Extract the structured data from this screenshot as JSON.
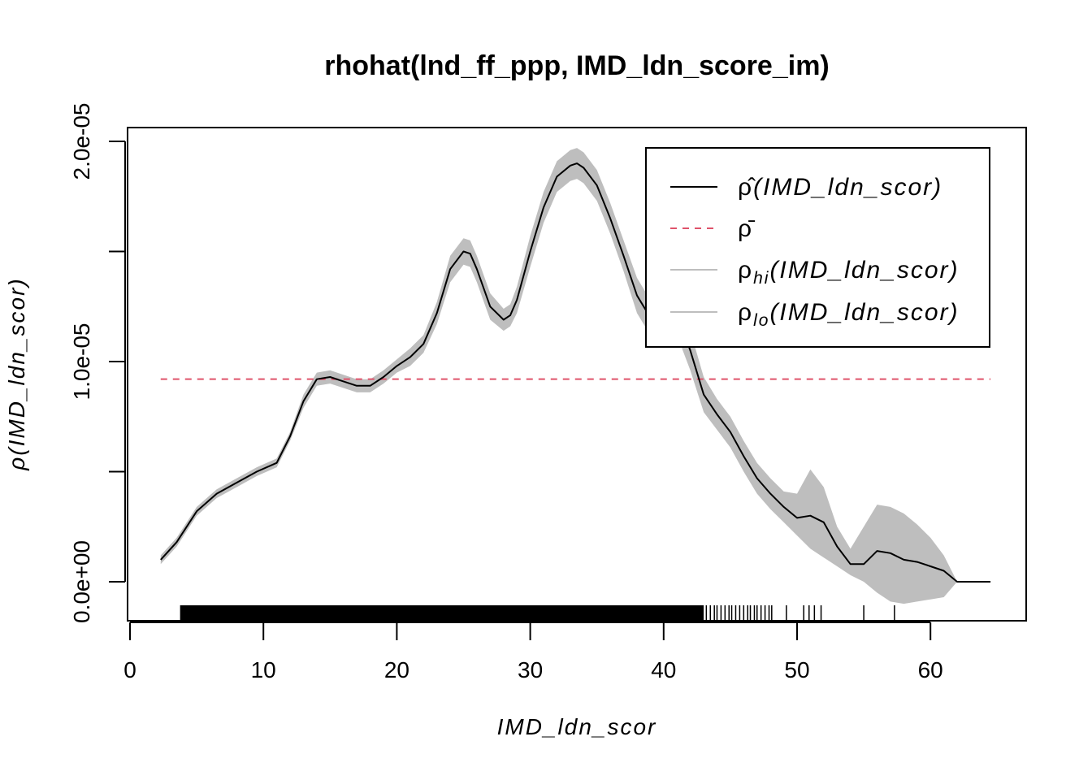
{
  "chart_data": {
    "type": "line",
    "title": "rhohat(lnd_ff_ppp, IMD_ldn_score_im)",
    "xlabel": "IMD_ldn_scor",
    "ylabel": "ρ(IMD_ldn_scor)",
    "xlim": [
      0,
      65
    ],
    "ylim": [
      -1.5e-06,
      2e-05
    ],
    "x_ticks": [
      0,
      10,
      20,
      30,
      40,
      50,
      60
    ],
    "x_tick_labels": [
      "0",
      "10",
      "20",
      "30",
      "40",
      "50",
      "60"
    ],
    "y_ticks": [
      0,
      5e-06,
      1e-05,
      1.5e-05,
      2e-05
    ],
    "y_tick_labels": [
      "0.0e+00",
      "",
      "1.0e-05",
      "",
      "2.0e-05"
    ],
    "grid": false,
    "legend_position": "top-right",
    "legend": [
      {
        "symbol": "ρ̂",
        "arg": "(IMD_ldn_scor)",
        "color": "#000000",
        "style": "solid"
      },
      {
        "symbol": "ρ̄",
        "arg": "",
        "color": "#DF536B",
        "style": "dashed"
      },
      {
        "symbol": "ρ",
        "sub": "hi",
        "arg": "(IMD_ldn_scor)",
        "color": "#BEBEBE",
        "style": "solid"
      },
      {
        "symbol": "ρ",
        "sub": "lo",
        "arg": "(IMD_ldn_scor)",
        "color": "#BEBEBE",
        "style": "solid"
      }
    ],
    "rho_bar": 9.2e-06,
    "series": [
      {
        "name": "ρ̂(IMD_ldn_scor)",
        "color": "#000000",
        "x": [
          2.3,
          3.5,
          5.0,
          6.5,
          8.0,
          9.5,
          11.0,
          12.0,
          13.0,
          14.0,
          15.0,
          16.0,
          17.0,
          18.0,
          19.0,
          20.0,
          21.0,
          22.0,
          23.0,
          24.0,
          25.0,
          25.5,
          26.0,
          27.0,
          28.0,
          28.5,
          29.0,
          30.0,
          31.0,
          32.0,
          33.0,
          33.5,
          34.0,
          35.0,
          36.0,
          37.0,
          38.0,
          39.0,
          40.0,
          40.5,
          41.0,
          42.0,
          43.0,
          44.0,
          45.0,
          46.0,
          47.0,
          48.0,
          49.0,
          50.0,
          51.0,
          52.0,
          53.0,
          54.0,
          55.0,
          56.0,
          57.0,
          58.0,
          59.0,
          60.0,
          61.0,
          62.0,
          63.0,
          64.5
        ],
        "values": [
          1e-06,
          1.8e-06,
          3.2e-06,
          4e-06,
          4.5e-06,
          5e-06,
          5.4e-06,
          6.6e-06,
          8.2e-06,
          9.2e-06,
          9.3e-06,
          9.1e-06,
          8.9e-06,
          8.9e-06,
          9.3e-06,
          9.8e-06,
          1.02e-05,
          1.08e-05,
          1.22e-05,
          1.42e-05,
          1.5e-05,
          1.49e-05,
          1.42e-05,
          1.25e-05,
          1.19e-05,
          1.21e-05,
          1.28e-05,
          1.5e-05,
          1.7e-05,
          1.84e-05,
          1.89e-05,
          1.9e-05,
          1.88e-05,
          1.8e-05,
          1.65e-05,
          1.48e-05,
          1.3e-05,
          1.2e-05,
          1.22e-05,
          1.25e-05,
          1.22e-05,
          1.05e-05,
          8.5e-06,
          7.6e-06,
          6.8e-06,
          5.7e-06,
          4.7e-06,
          4e-06,
          3.4e-06,
          2.9e-06,
          3e-06,
          2.7e-06,
          1.6e-06,
          8e-07,
          8e-07,
          1.4e-06,
          1.3e-06,
          1e-06,
          9e-07,
          7e-07,
          5e-07,
          0.0,
          0.0,
          0.0
        ]
      },
      {
        "name": "ρhi(IMD_ldn_scor)",
        "color": "#BEBEBE",
        "x": [
          2.3,
          3.5,
          5.0,
          6.5,
          8.0,
          9.5,
          11.0,
          12.0,
          13.0,
          14.0,
          15.0,
          16.0,
          17.0,
          18.0,
          19.0,
          20.0,
          21.0,
          22.0,
          23.0,
          24.0,
          25.0,
          25.5,
          26.0,
          27.0,
          28.0,
          28.5,
          29.0,
          30.0,
          31.0,
          32.0,
          33.0,
          33.5,
          34.0,
          35.0,
          36.0,
          37.0,
          38.0,
          39.0,
          40.0,
          40.5,
          41.0,
          42.0,
          43.0,
          44.0,
          45.0,
          46.0,
          47.0,
          48.0,
          49.0,
          50.0,
          51.0,
          52.0,
          53.0,
          54.0,
          55.0,
          56.0,
          57.0,
          58.0,
          59.0,
          60.0,
          61.0,
          62.0
        ],
        "values": [
          1.2e-06,
          2e-06,
          3.4e-06,
          4.2e-06,
          4.7e-06,
          5.2e-06,
          5.6e-06,
          6.8e-06,
          8.5e-06,
          9.5e-06,
          9.6e-06,
          9.4e-06,
          9.2e-06,
          9.2e-06,
          9.6e-06,
          1.01e-05,
          1.06e-05,
          1.12e-05,
          1.27e-05,
          1.48e-05,
          1.56e-05,
          1.55e-05,
          1.48e-05,
          1.31e-05,
          1.24e-05,
          1.26e-05,
          1.34e-05,
          1.57e-05,
          1.77e-05,
          1.91e-05,
          1.96e-05,
          1.97e-05,
          1.95e-05,
          1.87e-05,
          1.72e-05,
          1.55e-05,
          1.38e-05,
          1.28e-05,
          1.32e-05,
          1.35e-05,
          1.32e-05,
          1.14e-05,
          9.3e-06,
          8.3e-06,
          7.5e-06,
          6.4e-06,
          5.4e-06,
          4.7e-06,
          4.1e-06,
          4e-06,
          5.1e-06,
          4.3e-06,
          2.5e-06,
          1.5e-06,
          2.5e-06,
          3.5e-06,
          3.4e-06,
          3.1e-06,
          2.6e-06,
          2e-06,
          1.2e-06,
          0.0
        ]
      },
      {
        "name": "ρlo(IMD_ldn_scor)",
        "color": "#BEBEBE",
        "x": [
          2.3,
          3.5,
          5.0,
          6.5,
          8.0,
          9.5,
          11.0,
          12.0,
          13.0,
          14.0,
          15.0,
          16.0,
          17.0,
          18.0,
          19.0,
          20.0,
          21.0,
          22.0,
          23.0,
          24.0,
          25.0,
          25.5,
          26.0,
          27.0,
          28.0,
          28.5,
          29.0,
          30.0,
          31.0,
          32.0,
          33.0,
          33.5,
          34.0,
          35.0,
          36.0,
          37.0,
          38.0,
          39.0,
          40.0,
          40.5,
          41.0,
          42.0,
          43.0,
          44.0,
          45.0,
          46.0,
          47.0,
          48.0,
          49.0,
          50.0,
          51.0,
          52.0,
          53.0,
          54.0,
          55.0,
          56.0,
          57.0,
          58.0,
          59.0,
          60.0,
          61.0,
          62.0
        ],
        "values": [
          8e-07,
          1.6e-06,
          3e-06,
          3.8e-06,
          4.3e-06,
          4.8e-06,
          5.2e-06,
          6.4e-06,
          7.9e-06,
          8.9e-06,
          9e-06,
          8.8e-06,
          8.6e-06,
          8.6e-06,
          9e-06,
          9.5e-06,
          9.8e-06,
          1.04e-05,
          1.17e-05,
          1.36e-05,
          1.44e-05,
          1.43e-05,
          1.36e-05,
          1.19e-05,
          1.14e-05,
          1.16e-05,
          1.22e-05,
          1.43e-05,
          1.63e-05,
          1.77e-05,
          1.82e-05,
          1.83e-05,
          1.81e-05,
          1.73e-05,
          1.58e-05,
          1.41e-05,
          1.22e-05,
          1.12e-05,
          1.12e-05,
          1.15e-05,
          1.12e-05,
          9.6e-06,
          7.7e-06,
          6.9e-06,
          6.1e-06,
          5e-06,
          4e-06,
          3.3e-06,
          2.7e-06,
          2.1e-06,
          1.5e-06,
          1.1e-06,
          7e-07,
          3e-07,
          0.0,
          -5e-07,
          -9e-07,
          -1e-06,
          -9e-07,
          -8e-07,
          -7e-07,
          0.0
        ]
      }
    ],
    "rug": {
      "dense_range": [
        3.8,
        43.0
      ],
      "sparse_x": [
        43.2,
        43.5,
        43.8,
        44.0,
        44.3,
        44.6,
        44.9,
        45.1,
        45.4,
        45.7,
        46.0,
        46.3,
        46.5,
        46.8,
        47.0,
        47.3,
        47.6,
        47.9,
        48.1,
        49.2,
        50.5,
        50.9,
        51.3,
        51.8,
        55.0,
        57.3
      ]
    }
  }
}
